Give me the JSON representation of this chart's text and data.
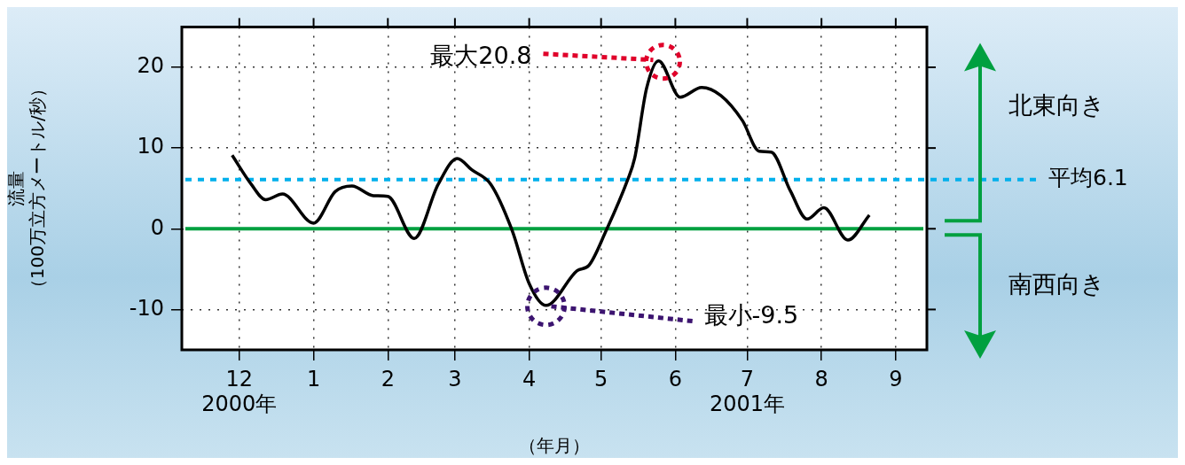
{
  "chart_data": {
    "type": "line",
    "xlabel": "（年月）",
    "ylabel": "流量（100万立方メートル/秒）",
    "x": [
      "2000-11-28",
      "2000-12-06",
      "2000-12-12",
      "2000-12-19",
      "2001-01-01",
      "2001-01-10",
      "2001-01-17",
      "2001-01-26",
      "2001-02-01",
      "2001-02-12",
      "2001-02-22",
      "2001-03-02",
      "2001-03-08",
      "2001-03-16",
      "2001-03-25",
      "2001-04-01",
      "2001-04-08",
      "2001-04-21",
      "2001-04-26",
      "2001-05-03",
      "2001-05-12",
      "2001-05-15",
      "2001-05-20",
      "2001-05-25",
      "2001-06-03",
      "2001-06-12",
      "2001-06-20",
      "2001-06-29",
      "2001-07-06",
      "2001-07-11",
      "2001-07-19",
      "2001-07-26",
      "2001-08-02",
      "2001-08-12",
      "2001-08-21"
    ],
    "series": [
      {
        "color": "#000000",
        "values": [
          9.1,
          5.5,
          3.6,
          4.3,
          0.7,
          4.6,
          5.3,
          4.1,
          4.0,
          -1.2,
          5.5,
          8.7,
          7.3,
          5.5,
          -0.3,
          -6.8,
          -9.5,
          -5.2,
          -4.5,
          -0.3,
          6.0,
          8.7,
          17.4,
          20.8,
          16.3,
          17.5,
          16.5,
          13.4,
          9.6,
          9.5,
          4.7,
          1.2,
          2.6,
          -1.4,
          1.7
        ]
      }
    ],
    "xlim": [
      "2000-11-07",
      "2001-09-14"
    ],
    "xticks": [
      {
        "value": "2000-12-01",
        "label": "12\n2000年"
      },
      {
        "value": "2001-01-01",
        "label": "1"
      },
      {
        "value": "2001-02-01",
        "label": "2"
      },
      {
        "value": "2001-03-01",
        "label": "3"
      },
      {
        "value": "2001-04-01",
        "label": "4"
      },
      {
        "value": "2001-05-01",
        "label": "5"
      },
      {
        "value": "2001-06-01",
        "label": "6"
      },
      {
        "value": "2001-07-01",
        "label": "7\n2001年"
      },
      {
        "value": "2001-08-01",
        "label": "8"
      },
      {
        "value": "2001-09-01",
        "label": "9"
      }
    ],
    "ylim": [
      -15,
      25
    ],
    "yticks": [
      -10,
      0,
      10,
      20
    ],
    "ref_lines": [
      {
        "axis": "y",
        "value": 0,
        "color": "#00a040",
        "line_style": "solid"
      },
      {
        "axis": "y",
        "value": 6.1,
        "label": "平均6.1",
        "color": "#00b0ec",
        "line_style": "dotted"
      }
    ],
    "annotations": [
      {
        "text": "最大20.8",
        "x": "2001-05-25",
        "y": 20.8
      },
      {
        "text": "最小-9.5",
        "x": "2001-04-08",
        "y": -9.5
      },
      "北東向き",
      "南西向き"
    ],
    "grid": true,
    "legend": false,
    "marker": "none",
    "line_style": "solid"
  }
}
